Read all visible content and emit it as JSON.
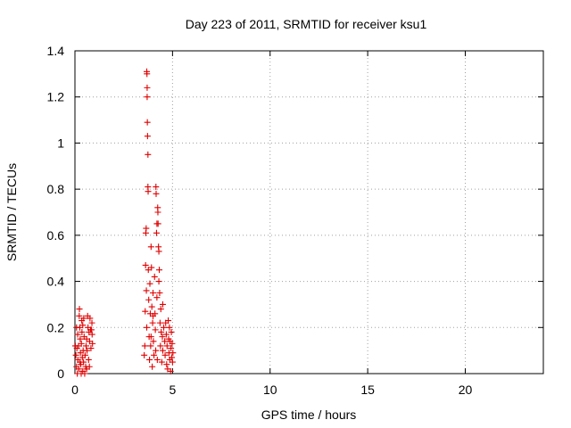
{
  "chart_data": {
    "type": "scatter",
    "title": "Day 223 of 2011, SRMTID for receiver ksu1",
    "xlabel": "GPS time / hours",
    "ylabel": "SRMTID / TECUs",
    "xlim": [
      0,
      24
    ],
    "ylim": [
      0,
      1.4
    ],
    "xticks": [
      "0",
      "5",
      "10",
      "15",
      "20"
    ],
    "yticks": [
      "0",
      "0.2",
      "0.4",
      "0.6",
      "0.8",
      "1",
      "1.2",
      "1.4"
    ],
    "grid": true,
    "marker": "plus",
    "color": "#e00000",
    "series": [
      {
        "points": [
          [
            0.02,
            0.12
          ],
          [
            0.05,
            0.08
          ],
          [
            0.08,
            0.03
          ],
          [
            0.1,
            0.11
          ],
          [
            0.12,
            0.0
          ],
          [
            0.15,
            0.06
          ],
          [
            0.18,
            0.12
          ],
          [
            0.2,
            0.02
          ],
          [
            0.22,
            0.25
          ],
          [
            0.23,
            0.28
          ],
          [
            0.25,
            0.2
          ],
          [
            0.27,
            0.15
          ],
          [
            0.28,
            0.09
          ],
          [
            0.3,
            0.04
          ],
          [
            0.32,
            0.0
          ],
          [
            0.33,
            0.13
          ],
          [
            0.35,
            0.23
          ],
          [
            0.36,
            0.18
          ],
          [
            0.38,
            0.07
          ],
          [
            0.4,
            0.01
          ],
          [
            0.42,
            0.1
          ],
          [
            0.44,
            0.05
          ],
          [
            0.45,
            0.24
          ],
          [
            0.47,
            0.16
          ],
          [
            0.5,
            0.0
          ],
          [
            0.52,
            0.08
          ],
          [
            0.55,
            0.03
          ],
          [
            0.57,
            0.12
          ],
          [
            0.6,
            0.02
          ],
          [
            0.62,
            0.1
          ],
          [
            0.65,
            0.25
          ],
          [
            0.67,
            0.2
          ],
          [
            0.7,
            0.06
          ],
          [
            0.72,
            0.18
          ],
          [
            0.74,
            0.03
          ],
          [
            0.75,
            0.14
          ],
          [
            0.77,
            0.24
          ],
          [
            0.8,
            0.19
          ],
          [
            0.82,
            0.11
          ],
          [
            0.85,
            0.19
          ],
          [
            0.87,
            0.22
          ],
          [
            0.88,
            0.17
          ],
          [
            0.9,
            0.13
          ],
          [
            0.08,
            0.2
          ],
          [
            0.14,
            0.17
          ],
          [
            0.26,
            0.05
          ],
          [
            0.4,
            0.21
          ],
          [
            0.6,
            0.15
          ],
          [
            3.55,
            0.08
          ],
          [
            3.58,
            0.12
          ],
          [
            3.6,
            0.27
          ],
          [
            3.62,
            0.47
          ],
          [
            3.63,
            0.61
          ],
          [
            3.65,
            0.63
          ],
          [
            3.66,
            0.36
          ],
          [
            3.68,
            0.2
          ],
          [
            3.68,
            1.31
          ],
          [
            3.69,
            1.3
          ],
          [
            3.7,
            1.24
          ],
          [
            3.7,
            1.2
          ],
          [
            3.71,
            1.09
          ],
          [
            3.72,
            1.03
          ],
          [
            3.74,
            0.95
          ],
          [
            3.74,
            0.81
          ],
          [
            3.75,
            0.79
          ],
          [
            3.76,
            0.45
          ],
          [
            3.78,
            0.32
          ],
          [
            3.8,
            0.16
          ],
          [
            3.82,
            0.06
          ],
          [
            3.84,
            0.39
          ],
          [
            3.86,
            0.26
          ],
          [
            3.88,
            0.12
          ],
          [
            3.9,
            0.55
          ],
          [
            3.92,
            0.46
          ],
          [
            3.94,
            0.29
          ],
          [
            3.96,
            0.03
          ],
          [
            3.98,
            0.22
          ],
          [
            4.0,
            0.35
          ],
          [
            4.02,
            0.14
          ],
          [
            4.05,
            0.08
          ],
          [
            4.08,
            0.42
          ],
          [
            4.1,
            0.26
          ],
          [
            4.12,
            0.19
          ],
          [
            4.14,
            0.1
          ],
          [
            4.15,
            0.81
          ],
          [
            4.16,
            0.78
          ],
          [
            4.18,
            0.61
          ],
          [
            4.2,
            0.33
          ],
          [
            4.22,
            0.06
          ],
          [
            4.24,
            0.72
          ],
          [
            4.25,
            0.7
          ],
          [
            4.26,
            0.65
          ],
          [
            4.28,
            0.55
          ],
          [
            4.3,
            0.53
          ],
          [
            4.32,
            0.45
          ],
          [
            4.34,
            0.35
          ],
          [
            4.36,
            0.22
          ],
          [
            4.38,
            0.12
          ],
          [
            4.4,
            0.28
          ],
          [
            4.42,
            0.18
          ],
          [
            4.45,
            0.05
          ],
          [
            4.48,
            0.16
          ],
          [
            4.5,
            0.1
          ],
          [
            4.55,
            0.2
          ],
          [
            4.6,
            0.14
          ],
          [
            4.62,
            0.08
          ],
          [
            4.65,
            0.22
          ],
          [
            4.68,
            0.17
          ],
          [
            4.7,
            0.04
          ],
          [
            4.72,
            0.12
          ],
          [
            4.75,
            0.02
          ],
          [
            4.78,
            0.23
          ],
          [
            4.8,
            0.15
          ],
          [
            4.82,
            0.09
          ],
          [
            4.84,
            0.2
          ],
          [
            4.86,
            0.06
          ],
          [
            4.88,
            0.14
          ],
          [
            4.9,
            0.01
          ],
          [
            4.92,
            0.11
          ],
          [
            4.94,
            0.18
          ],
          [
            4.96,
            0.07
          ],
          [
            4.98,
            0.13
          ],
          [
            5.0,
            0.05
          ],
          [
            5.02,
            0.09
          ],
          [
            3.9,
            0.16
          ],
          [
            4.0,
            0.25
          ],
          [
            4.3,
            0.4
          ],
          [
            4.5,
            0.3
          ],
          [
            4.2,
            0.65
          ]
        ]
      }
    ]
  }
}
